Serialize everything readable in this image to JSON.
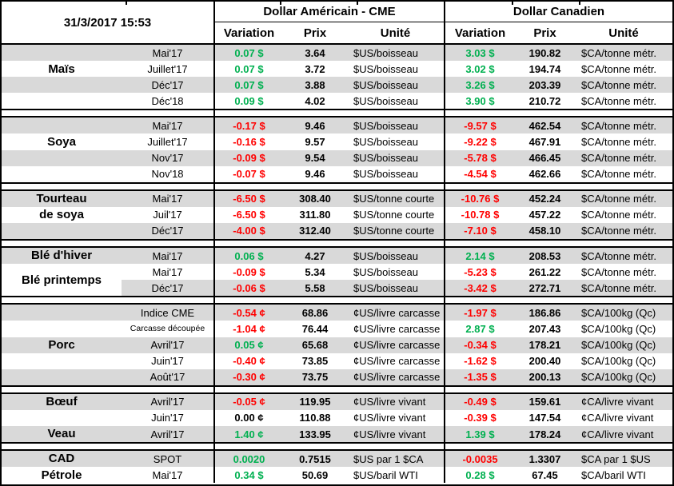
{
  "header": {
    "datetime": "31/3/2017 15:53",
    "usd_title": "Dollar Américain - CME",
    "cad_title": "Dollar Canadien",
    "col_variation": "Variation",
    "col_prix": "Prix",
    "col_unite": "Unité"
  },
  "colors": {
    "positive": "#00B050",
    "negative": "#FF0000",
    "neutral": "#000000",
    "band": "#D9D9D9",
    "border": "#000000"
  },
  "sections": [
    {
      "labels": [
        {
          "row": 2,
          "span": 1,
          "lines": [
            "Maïs"
          ]
        }
      ],
      "rows": [
        {
          "shade": "full",
          "month": "Mai'17",
          "us_var": "0.07 $",
          "us_dir": "up",
          "us_prix": "3.64",
          "us_unit": "$US/boisseau",
          "ca_var": "3.03 $",
          "ca_dir": "up",
          "ca_prix": "190.82",
          "ca_unit": "$CA/tonne métr."
        },
        {
          "shade": "none",
          "month": "Juillet'17",
          "us_var": "0.07 $",
          "us_dir": "up",
          "us_prix": "3.72",
          "us_unit": "$US/boisseau",
          "ca_var": "3.02 $",
          "ca_dir": "up",
          "ca_prix": "194.74",
          "ca_unit": "$CA/tonne métr."
        },
        {
          "shade": "full",
          "month": "Déc'17",
          "us_var": "0.07 $",
          "us_dir": "up",
          "us_prix": "3.88",
          "us_unit": "$US/boisseau",
          "ca_var": "3.26 $",
          "ca_dir": "up",
          "ca_prix": "203.39",
          "ca_unit": "$CA/tonne métr."
        },
        {
          "shade": "none",
          "month": "Déc'18",
          "us_var": "0.09 $",
          "us_dir": "up",
          "us_prix": "4.02",
          "us_unit": "$US/boisseau",
          "ca_var": "3.90 $",
          "ca_dir": "up",
          "ca_prix": "210.72",
          "ca_unit": "$CA/tonne métr."
        }
      ]
    },
    {
      "labels": [
        {
          "row": 2,
          "span": 1,
          "lines": [
            "Soya"
          ]
        }
      ],
      "rows": [
        {
          "shade": "full",
          "month": "Mai'17",
          "us_var": "-0.17 $",
          "us_dir": "down",
          "us_prix": "9.46",
          "us_unit": "$US/boisseau",
          "ca_var": "-9.57 $",
          "ca_dir": "down",
          "ca_prix": "462.54",
          "ca_unit": "$CA/tonne métr."
        },
        {
          "shade": "none",
          "month": "Juillet'17",
          "us_var": "-0.16 $",
          "us_dir": "down",
          "us_prix": "9.57",
          "us_unit": "$US/boisseau",
          "ca_var": "-9.22 $",
          "ca_dir": "down",
          "ca_prix": "467.91",
          "ca_unit": "$CA/tonne métr."
        },
        {
          "shade": "full",
          "month": "Nov'17",
          "us_var": "-0.09 $",
          "us_dir": "down",
          "us_prix": "9.54",
          "us_unit": "$US/boisseau",
          "ca_var": "-5.78 $",
          "ca_dir": "down",
          "ca_prix": "466.45",
          "ca_unit": "$CA/tonne métr."
        },
        {
          "shade": "none",
          "month": "Nov'18",
          "us_var": "-0.07 $",
          "us_dir": "down",
          "us_prix": "9.46",
          "us_unit": "$US/boisseau",
          "ca_var": "-4.54 $",
          "ca_dir": "down",
          "ca_prix": "462.66",
          "ca_unit": "$CA/tonne métr."
        }
      ]
    },
    {
      "labels": [
        {
          "row": 1,
          "span": 1,
          "lines": [
            "Tourteau"
          ]
        },
        {
          "row": 2,
          "span": 1,
          "lines": [
            "de soya"
          ]
        }
      ],
      "rows": [
        {
          "shade": "full",
          "month": "Mai'17",
          "us_var": "-6.50 $",
          "us_dir": "down",
          "us_prix": "308.40",
          "us_unit": "$US/tonne courte",
          "ca_var": "-10.76 $",
          "ca_dir": "down",
          "ca_prix": "452.24",
          "ca_unit": "$CA/tonne métr."
        },
        {
          "shade": "none",
          "month": "Juil'17",
          "us_var": "-6.50 $",
          "us_dir": "down",
          "us_prix": "311.80",
          "us_unit": "$US/tonne courte",
          "ca_var": "-10.78 $",
          "ca_dir": "down",
          "ca_prix": "457.22",
          "ca_unit": "$CA/tonne métr."
        },
        {
          "shade": "full",
          "month": "Déc'17",
          "us_var": "-4.00 $",
          "us_dir": "down",
          "us_prix": "312.40",
          "us_unit": "$US/tonne courte",
          "ca_var": "-7.10 $",
          "ca_dir": "down",
          "ca_prix": "458.10",
          "ca_unit": "$CA/tonne métr."
        }
      ]
    },
    {
      "labels": [
        {
          "row": 1,
          "span": 1,
          "lines": [
            "Blé d'hiver"
          ]
        },
        {
          "row": 2,
          "span": 2,
          "lines": [
            "Blé printemps"
          ]
        }
      ],
      "rows": [
        {
          "shade": "full",
          "month": "Mai'17",
          "us_var": "0.06 $",
          "us_dir": "up",
          "us_prix": "4.27",
          "us_unit": "$US/boisseau",
          "ca_var": "2.14 $",
          "ca_dir": "up",
          "ca_prix": "208.53",
          "ca_unit": "$CA/tonne métr."
        },
        {
          "shade": "none",
          "month": "Mai'17",
          "us_var": "-0.09 $",
          "us_dir": "down",
          "us_prix": "5.34",
          "us_unit": "$US/boisseau",
          "ca_var": "-5.23 $",
          "ca_dir": "down",
          "ca_prix": "261.22",
          "ca_unit": "$CA/tonne métr."
        },
        {
          "shade": "partial",
          "month": "Déc'17",
          "us_var": "-0.06 $",
          "us_dir": "down",
          "us_prix": "5.58",
          "us_unit": "$US/boisseau",
          "ca_var": "-3.42 $",
          "ca_dir": "down",
          "ca_prix": "272.71",
          "ca_unit": "$CA/tonne métr."
        }
      ]
    },
    {
      "labels": [
        {
          "row": 3,
          "span": 1,
          "lines": [
            "Porc"
          ]
        }
      ],
      "rows": [
        {
          "shade": "full",
          "month": "Indice CME",
          "us_var": "-0.54 ¢",
          "us_dir": "down",
          "us_prix": "68.86",
          "us_unit": "¢US/livre carcasse",
          "ca_var": "-1.97 $",
          "ca_dir": "down",
          "ca_prix": "186.86",
          "ca_unit": "$CA/100kg (Qc)"
        },
        {
          "shade": "none",
          "month": "Carcasse découpée",
          "month_small": true,
          "us_var": "-1.04 ¢",
          "us_dir": "down",
          "us_prix": "76.44",
          "us_unit": "¢US/livre carcasse",
          "ca_var": "2.87 $",
          "ca_dir": "up",
          "ca_prix": "207.43",
          "ca_unit": "$CA/100kg (Qc)"
        },
        {
          "shade": "full",
          "month": "Avril'17",
          "us_var": "0.05 ¢",
          "us_dir": "up",
          "us_prix": "65.68",
          "us_unit": "¢US/livre carcasse",
          "ca_var": "-0.34 $",
          "ca_dir": "down",
          "ca_prix": "178.21",
          "ca_unit": "$CA/100kg (Qc)"
        },
        {
          "shade": "none",
          "month": "Juin'17",
          "us_var": "-0.40 ¢",
          "us_dir": "down",
          "us_prix": "73.85",
          "us_unit": "¢US/livre carcasse",
          "ca_var": "-1.62 $",
          "ca_dir": "down",
          "ca_prix": "200.40",
          "ca_unit": "$CA/100kg (Qc)"
        },
        {
          "shade": "full",
          "month": "Août'17",
          "us_var": "-0.30 ¢",
          "us_dir": "down",
          "us_prix": "73.75",
          "us_unit": "¢US/livre carcasse",
          "ca_var": "-1.35 $",
          "ca_dir": "down",
          "ca_prix": "200.13",
          "ca_unit": "$CA/100kg (Qc)"
        }
      ]
    },
    {
      "labels": [
        {
          "row": 1,
          "span": 1,
          "lines": [
            "Bœuf"
          ]
        },
        {
          "row": 3,
          "span": 1,
          "lines": [
            "Veau"
          ]
        }
      ],
      "rows": [
        {
          "shade": "full",
          "month": "Avril'17",
          "us_var": "-0.05 ¢",
          "us_dir": "down",
          "us_prix": "119.95",
          "us_unit": "¢US/livre vivant",
          "ca_var": "-0.49 $",
          "ca_dir": "down",
          "ca_prix": "159.61",
          "ca_unit": "¢CA/livre vivant"
        },
        {
          "shade": "none",
          "month": "Juin'17",
          "us_var": "0.00 ¢",
          "us_dir": "flat",
          "us_prix": "110.88",
          "us_unit": "¢US/livre vivant",
          "ca_var": "-0.39 $",
          "ca_dir": "down",
          "ca_prix": "147.54",
          "ca_unit": "¢CA/livre vivant"
        },
        {
          "shade": "full",
          "month": "Avril'17",
          "us_var": "1.40 ¢",
          "us_dir": "up",
          "us_prix": "133.95",
          "us_unit": "¢US/livre vivant",
          "ca_var": "1.39 $",
          "ca_dir": "up",
          "ca_prix": "178.24",
          "ca_unit": "¢CA/livre vivant"
        }
      ]
    },
    {
      "labels": [
        {
          "row": 1,
          "span": 1,
          "lines": [
            "CAD"
          ]
        },
        {
          "row": 2,
          "span": 1,
          "lines": [
            "Pétrole"
          ]
        }
      ],
      "rows": [
        {
          "shade": "full",
          "month": "SPOT",
          "us_var": "0.0020",
          "us_dir": "up",
          "us_prix": "0.7515",
          "us_unit": "$US par 1 $CA",
          "ca_var": "-0.0035",
          "ca_dir": "down",
          "ca_prix": "1.3307",
          "ca_unit": "$CA par 1 $US"
        },
        {
          "shade": "none",
          "month": "Mai'17",
          "us_var": "0.34 $",
          "us_dir": "up",
          "us_prix": "50.69",
          "us_unit": "$US/baril WTI",
          "ca_var": "0.28 $",
          "ca_dir": "up",
          "ca_prix": "67.45",
          "ca_unit": "$CA/baril WTI"
        }
      ]
    }
  ]
}
